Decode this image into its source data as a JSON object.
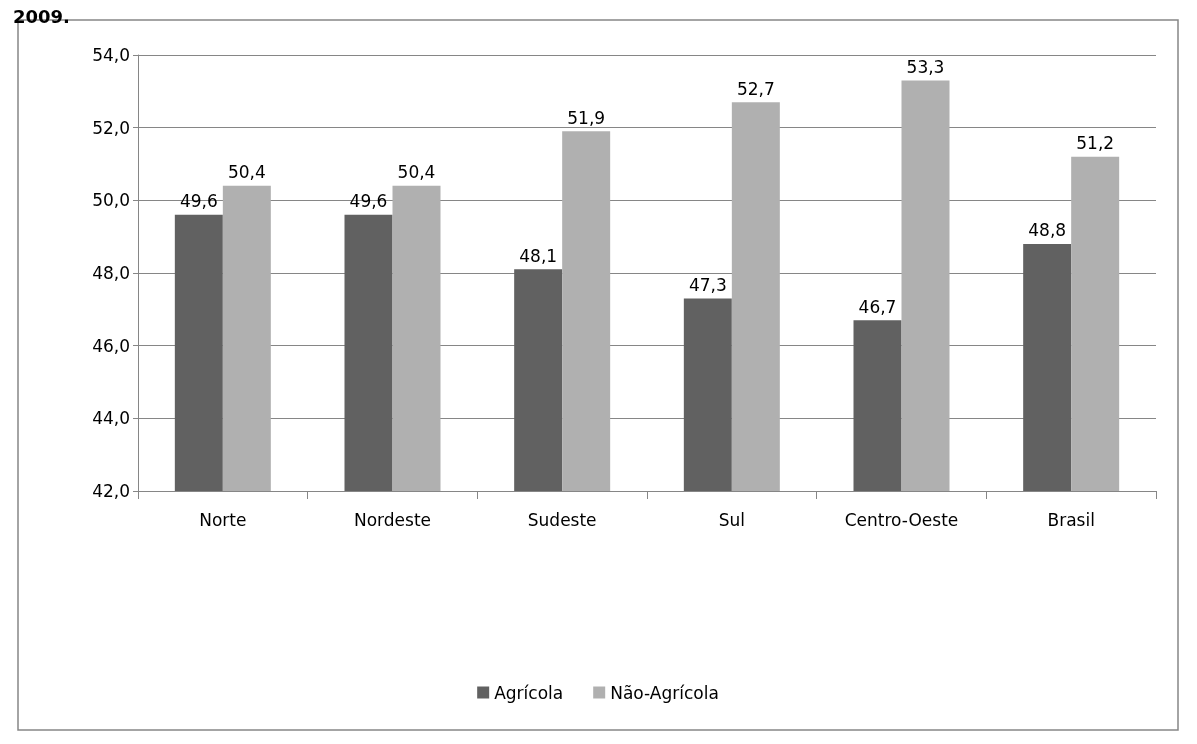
{
  "chart_data": {
    "type": "bar",
    "title": "2009.",
    "categories": [
      "Norte",
      "Nordeste",
      "Sudeste",
      "Sul",
      "Centro-Oeste",
      "Brasil"
    ],
    "series": [
      {
        "name": "Agrícola",
        "color": "#616161",
        "values": [
          49.6,
          49.6,
          48.1,
          47.3,
          46.7,
          48.8
        ],
        "value_labels": [
          "49,6",
          "49,6",
          "48,1",
          "47,3",
          "46,7",
          "48,8"
        ]
      },
      {
        "name": "Não-Agrícola",
        "color": "#b0b0b0",
        "values": [
          50.4,
          50.4,
          51.9,
          52.7,
          53.3,
          51.2
        ],
        "value_labels": [
          "50,4",
          "50,4",
          "51,9",
          "52,7",
          "53,3",
          "51,2"
        ]
      }
    ],
    "ylim": [
      42,
      54
    ],
    "yticks": [
      {
        "value": 42,
        "label": "42,0"
      },
      {
        "value": 44,
        "label": "44,0"
      },
      {
        "value": 46,
        "label": "46,0"
      },
      {
        "value": 48,
        "label": "48,0"
      },
      {
        "value": 50,
        "label": "50,0"
      },
      {
        "value": 52,
        "label": "52,0"
      },
      {
        "value": 54,
        "label": "54,0"
      }
    ],
    "grid": "y",
    "legend": "bottom"
  }
}
